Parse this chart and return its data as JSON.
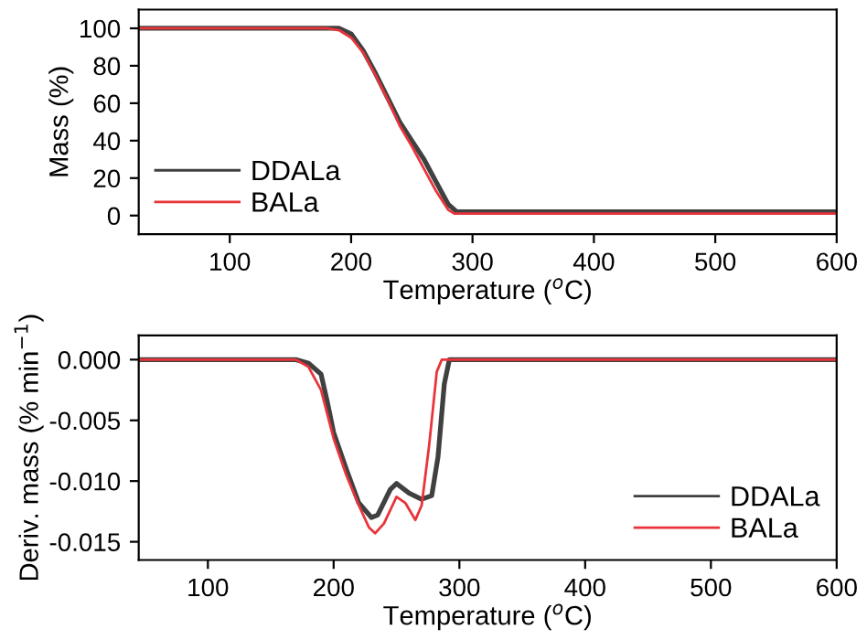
{
  "chart_data": [
    {
      "type": "line",
      "xlabel": "Temperature ($^{o}$C)",
      "ylabel": "Mass (%)",
      "xlim": [
        25,
        600
      ],
      "ylim": [
        -10,
        110
      ],
      "xticks": [
        100,
        200,
        300,
        400,
        500,
        600
      ],
      "yticks": [
        0,
        20,
        40,
        60,
        80,
        100
      ],
      "legend": "lower left",
      "series": [
        {
          "name": "DDALa",
          "color": "#404040",
          "x": [
            25,
            100,
            180,
            190,
            200,
            210,
            220,
            230,
            240,
            250,
            260,
            270,
            280,
            287,
            300,
            400,
            600
          ],
          "values": [
            100,
            100,
            100,
            100,
            97,
            88,
            76,
            63,
            50,
            40,
            30,
            18,
            6,
            2,
            2,
            2,
            2
          ]
        },
        {
          "name": "BALa",
          "color": "#e8343a",
          "x": [
            25,
            100,
            180,
            190,
            200,
            210,
            220,
            230,
            240,
            250,
            260,
            270,
            280,
            285,
            300,
            400,
            600
          ],
          "values": [
            100,
            100,
            100,
            99,
            95,
            87,
            75,
            62,
            48,
            37,
            25,
            13,
            3,
            1,
            1,
            1,
            1
          ]
        }
      ]
    },
    {
      "type": "line",
      "xlabel": "Temperature ($^{o}$C)",
      "ylabel": "Deriv. mass (% min$^{−1}$)",
      "xlim": [
        45,
        600
      ],
      "ylim": [
        -0.0165,
        0.002
      ],
      "xticks": [
        100,
        200,
        300,
        400,
        500,
        600
      ],
      "yticks": [
        {
          "value": 0,
          "label": "0.000"
        },
        {
          "value": -0.005,
          "label": "-0.005"
        },
        {
          "value": -0.01,
          "label": "-0.010"
        },
        {
          "value": -0.015,
          "label": "-0.015"
        }
      ],
      "legend": "lower right",
      "series": [
        {
          "name": "DDALa",
          "color": "#404040",
          "x": [
            45,
            100,
            170,
            180,
            190,
            195,
            200,
            210,
            220,
            230,
            235,
            245,
            250,
            260,
            270,
            278,
            283,
            288,
            292,
            400,
            600
          ],
          "values": [
            0,
            0,
            0,
            -0.0003,
            -0.0012,
            -0.0035,
            -0.006,
            -0.009,
            -0.0118,
            -0.013,
            -0.0128,
            -0.0107,
            -0.0102,
            -0.011,
            -0.0115,
            -0.0112,
            -0.008,
            -0.002,
            0,
            0,
            0
          ]
        },
        {
          "name": "BALa",
          "color": "#e8343a",
          "x": [
            45,
            100,
            170,
            180,
            190,
            200,
            210,
            220,
            228,
            233,
            240,
            250,
            257,
            265,
            270,
            276,
            282,
            286,
            400,
            600
          ],
          "values": [
            0,
            0,
            0,
            -0.0006,
            -0.0025,
            -0.0065,
            -0.0095,
            -0.012,
            -0.0138,
            -0.0143,
            -0.0135,
            -0.0113,
            -0.0118,
            -0.0132,
            -0.012,
            -0.007,
            -0.001,
            0,
            0,
            0
          ]
        }
      ]
    }
  ]
}
